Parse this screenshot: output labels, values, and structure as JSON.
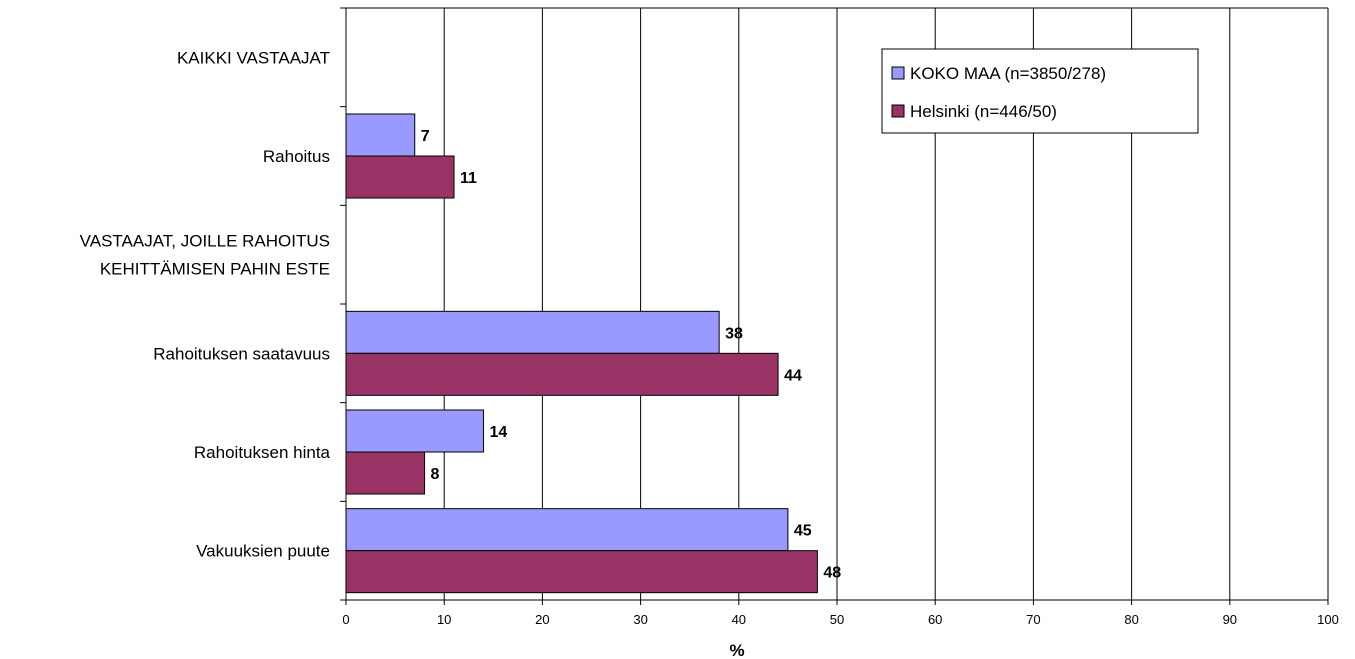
{
  "chart_data": {
    "type": "bar",
    "orientation": "horizontal",
    "categories": [
      {
        "lines": [
          "KAIKKI VASTAAJAT"
        ],
        "header": true
      },
      {
        "lines": [
          "Rahoitus"
        ],
        "header": false
      },
      {
        "lines": [
          "VASTAAJAT, JOILLE RAHOITUS",
          "KEHITTÄMISEN PAHIN ESTE"
        ],
        "header": true
      },
      {
        "lines": [
          "Rahoituksen saatavuus"
        ],
        "header": false
      },
      {
        "lines": [
          "Rahoituksen hinta"
        ],
        "header": false
      },
      {
        "lines": [
          "Vakuuksien puute"
        ],
        "header": false
      }
    ],
    "series": [
      {
        "name": "KOKO MAA (n=3850/278)",
        "color": "#9999ff",
        "values": [
          null,
          7,
          null,
          38,
          14,
          45
        ]
      },
      {
        "name": "Helsinki (n=446/50)",
        "color": "#993366",
        "values": [
          null,
          11,
          null,
          44,
          8,
          48
        ]
      }
    ],
    "xlabel": "%",
    "xlim": [
      0,
      100
    ],
    "xticks": [
      "0",
      "10",
      "20",
      "30",
      "40",
      "50",
      "60",
      "70",
      "80",
      "90",
      "100"
    ],
    "grid": true,
    "legend_position": "top-right"
  }
}
